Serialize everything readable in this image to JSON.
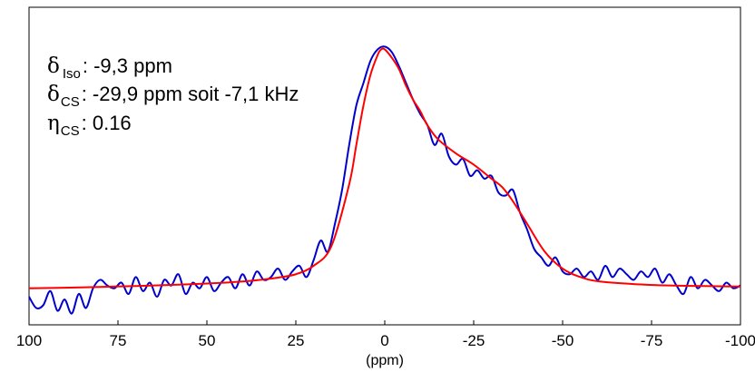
{
  "chart_data": {
    "type": "line",
    "xlabel": "(ppm)",
    "ylabel": "",
    "title": "",
    "xlim": [
      100,
      -100
    ],
    "ylim": [
      -0.08,
      1.05
    ],
    "x_ticks": [
      "100",
      "75",
      "50",
      "25",
      "0",
      "-25",
      "-50",
      "-75",
      "-100"
    ],
    "grid": false,
    "annotations": [
      {
        "symbol": "δ",
        "subscript": "Iso",
        "text": ": -9,3 ppm"
      },
      {
        "symbol": "δ",
        "subscript": "CS",
        "text": ":  -29,9 ppm soit -7,1 kHz"
      },
      {
        "symbol": "η",
        "subscript": "CS",
        "text": ": 0.16"
      }
    ],
    "series": [
      {
        "color": "#0000cc",
        "x": [
          100,
          98,
          96,
          94,
          92,
          90,
          88,
          86,
          84,
          82,
          80,
          78,
          76,
          74,
          72,
          70,
          68,
          66,
          64,
          62,
          60,
          58,
          56,
          54,
          52,
          50,
          48,
          46,
          44,
          42,
          40,
          38,
          36,
          34,
          32,
          30,
          28,
          26,
          24,
          22,
          20,
          18,
          16,
          14,
          12,
          10,
          8,
          6,
          4,
          2,
          0,
          -2,
          -4,
          -6,
          -8,
          -10,
          -12,
          -14,
          -16,
          -18,
          -20,
          -22,
          -24,
          -26,
          -28,
          -30,
          -32,
          -34,
          -36,
          -38,
          -40,
          -42,
          -44,
          -46,
          -48,
          -50,
          -52,
          -54,
          -56,
          -58,
          -60,
          -62,
          -64,
          -66,
          -68,
          -70,
          -72,
          -74,
          -76,
          -78,
          -80,
          -82,
          -84,
          -86,
          -88,
          -90,
          -92,
          -94,
          -96,
          -98,
          -100
        ],
        "y": [
          0.02,
          -0.02,
          -0.01,
          0.04,
          -0.03,
          0.01,
          -0.04,
          0.03,
          -0.02,
          0.05,
          0.08,
          0.06,
          0.05,
          0.07,
          0.03,
          0.09,
          0.04,
          0.07,
          0.02,
          0.08,
          0.06,
          0.1,
          0.03,
          0.07,
          0.05,
          0.09,
          0.04,
          0.07,
          0.09,
          0.05,
          0.1,
          0.06,
          0.11,
          0.08,
          0.09,
          0.12,
          0.08,
          0.11,
          0.13,
          0.09,
          0.15,
          0.22,
          0.18,
          0.28,
          0.4,
          0.56,
          0.7,
          0.78,
          0.86,
          0.9,
          0.91,
          0.89,
          0.84,
          0.78,
          0.72,
          0.67,
          0.63,
          0.56,
          0.6,
          0.52,
          0.49,
          0.51,
          0.45,
          0.47,
          0.44,
          0.45,
          0.39,
          0.38,
          0.4,
          0.32,
          0.26,
          0.19,
          0.16,
          0.13,
          0.16,
          0.11,
          0.1,
          0.12,
          0.09,
          0.11,
          0.08,
          0.13,
          0.09,
          0.12,
          0.1,
          0.08,
          0.11,
          0.09,
          0.12,
          0.07,
          0.1,
          0.06,
          0.03,
          0.09,
          0.05,
          0.08,
          0.06,
          0.04,
          0.07,
          0.05,
          0.06
        ]
      },
      {
        "color": "#ff0000",
        "x": [
          100,
          90,
          80,
          70,
          60,
          50,
          40,
          35,
          30,
          25,
          20,
          15,
          10,
          8,
          6,
          4,
          2,
          1,
          0,
          -2,
          -4,
          -6,
          -8,
          -10,
          -12,
          -15,
          -20,
          -25,
          -30,
          -33,
          -36,
          -40,
          -45,
          -50,
          -55,
          -60,
          -70,
          -80,
          -90,
          -100
        ],
        "y": [
          0.05,
          0.052,
          0.055,
          0.058,
          0.062,
          0.067,
          0.074,
          0.08,
          0.088,
          0.1,
          0.13,
          0.2,
          0.42,
          0.56,
          0.7,
          0.81,
          0.88,
          0.9,
          0.9,
          0.87,
          0.83,
          0.77,
          0.72,
          0.68,
          0.63,
          0.58,
          0.53,
          0.49,
          0.44,
          0.41,
          0.36,
          0.28,
          0.18,
          0.12,
          0.09,
          0.075,
          0.065,
          0.06,
          0.058,
          0.056
        ]
      }
    ]
  }
}
